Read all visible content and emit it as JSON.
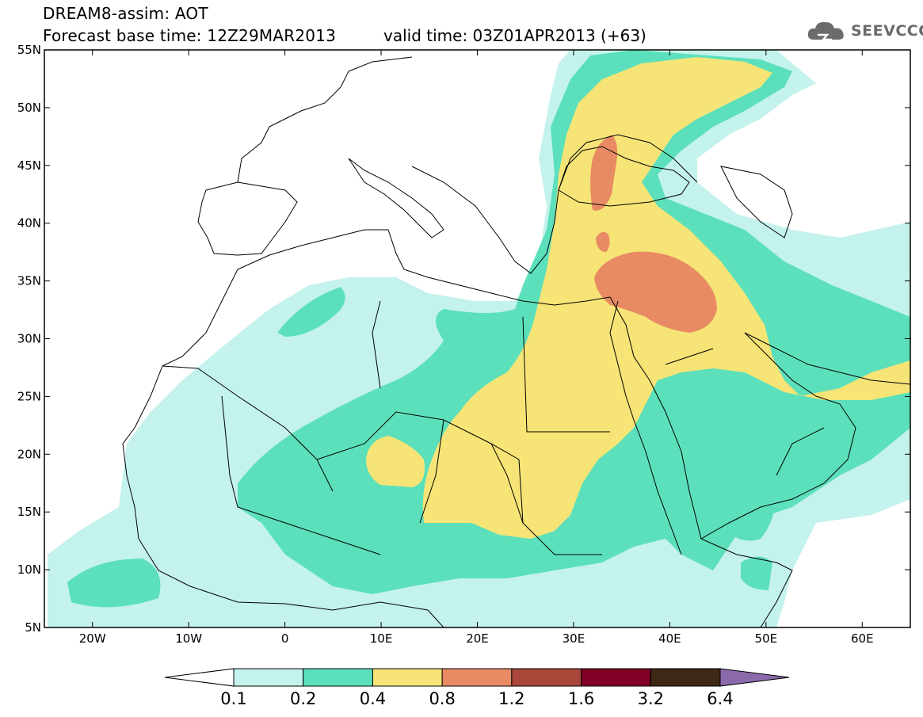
{
  "header": {
    "title_line1": "DREAM8-assim: AOT",
    "title_line2": "Forecast base time: 12Z29MAR2013",
    "valid_time": "valid time: 03Z01APR2013 (+63)"
  },
  "logo": {
    "text": "SEEVCCC",
    "icon": "cloud-icon"
  },
  "map": {
    "projection": "lat-lon",
    "lon_range": [
      -25,
      65
    ],
    "lat_range": [
      5,
      55
    ],
    "lat_ticks": [
      "55N",
      "50N",
      "45N",
      "40N",
      "35N",
      "30N",
      "25N",
      "20N",
      "15N",
      "10N",
      "5N"
    ],
    "lon_ticks": [
      "20W",
      "10W",
      "0",
      "10E",
      "20E",
      "30E",
      "40E",
      "50E",
      "60E"
    ]
  },
  "colorbar": {
    "levels": [
      "0.1",
      "0.2",
      "0.4",
      "0.8",
      "1.2",
      "1.6",
      "3.2",
      "6.4"
    ],
    "colors": [
      "#ffffff",
      "#c4f2ec",
      "#5ce0bb",
      "#f6e476",
      "#e88b64",
      "#a8473a",
      "#800026",
      "#3c2814",
      "#8b6aab"
    ]
  },
  "colors": {
    "aot_0_1": "#c4f2ec",
    "aot_0_2": "#5ce0bb",
    "aot_0_4": "#f6e476",
    "aot_0_8": "#e88b64"
  }
}
